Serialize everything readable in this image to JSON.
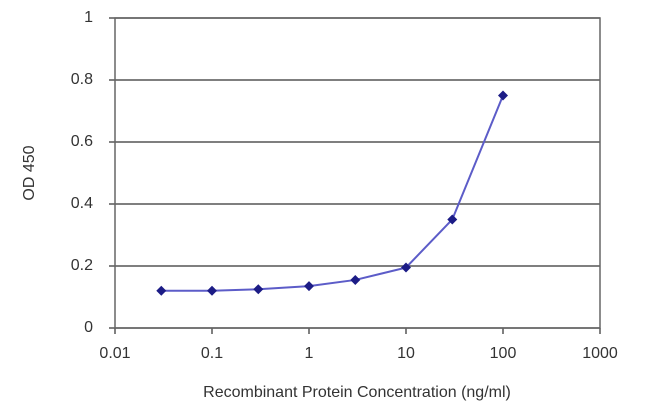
{
  "chart_data": {
    "type": "line",
    "x_label": "Recombinant Protein Concentration (ng/ml)",
    "y_label": "OD 450",
    "x": [
      0.03,
      0.1,
      0.3,
      1,
      3,
      10,
      30,
      100
    ],
    "values": [
      0.12,
      0.12,
      0.125,
      0.135,
      0.155,
      0.195,
      0.35,
      0.75
    ],
    "color": "#5c5cc8",
    "marker_color": "#1c1c86",
    "xscale": "log",
    "xlim": [
      0.01,
      1000
    ],
    "xticks": [
      0.01,
      0.1,
      1,
      10,
      100,
      1000
    ],
    "ylim": [
      0,
      1
    ],
    "yticks": [
      0,
      0.2,
      0.4,
      0.6,
      0.8,
      1
    ],
    "grid": true
  }
}
